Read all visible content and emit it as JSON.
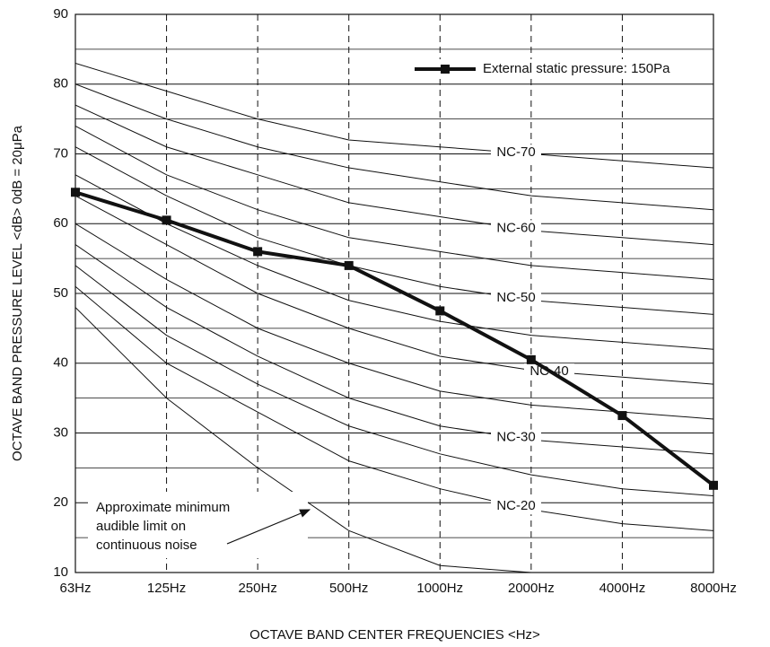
{
  "chart_data": {
    "type": "line",
    "y_axis_label": "OCTAVE BAND PRESSURE LEVEL <dB> 0dB = 20μPa",
    "x_axis_label": "OCTAVE BAND CENTER FREQUENCIES <Hz>",
    "categories": [
      "63Hz",
      "125Hz",
      "250Hz",
      "500Hz",
      "1000Hz",
      "2000Hz",
      "4000Hz",
      "8000Hz"
    ],
    "ylim": [
      10,
      90
    ],
    "yticks": [
      10,
      20,
      30,
      40,
      50,
      60,
      70,
      80,
      90
    ],
    "minor_yticks": [
      15,
      25,
      35,
      45,
      55,
      65,
      75,
      85
    ],
    "grid": true,
    "legend": "upper right",
    "series": [
      {
        "name": "External static pressure: 150Pa",
        "color": "#111111",
        "values": [
          64.5,
          60.5,
          56,
          54,
          47.5,
          40.5,
          32.5,
          22.5
        ]
      }
    ],
    "nc_curves": [
      {
        "label": "NC-70",
        "values": [
          83,
          79,
          75,
          72,
          71,
          70,
          69,
          68
        ]
      },
      {
        "values": [
          80,
          75,
          71,
          68,
          66,
          64,
          63,
          62
        ]
      },
      {
        "label": "NC-60",
        "values": [
          77,
          71,
          67,
          63,
          61,
          59,
          58,
          57
        ]
      },
      {
        "values": [
          74,
          67,
          62,
          58,
          56,
          54,
          53,
          52
        ]
      },
      {
        "label": "NC-50",
        "values": [
          71,
          64,
          58,
          54,
          51,
          49,
          48,
          47
        ]
      },
      {
        "values": [
          67,
          60,
          54,
          49,
          46,
          44,
          43,
          42
        ]
      },
      {
        "label": "NC-40",
        "values": [
          64,
          57,
          50,
          45,
          41,
          39,
          38,
          37
        ]
      },
      {
        "values": [
          60,
          52,
          45,
          40,
          36,
          34,
          33,
          32
        ]
      },
      {
        "label": "NC-30",
        "values": [
          57,
          48,
          41,
          35,
          31,
          29,
          28,
          27
        ]
      },
      {
        "values": [
          54,
          44,
          37,
          31,
          27,
          24,
          22,
          21
        ]
      },
      {
        "label": "NC-20",
        "values": [
          51,
          40,
          33,
          26,
          22,
          19,
          17,
          16
        ]
      }
    ],
    "audible_limit": {
      "values": [
        48,
        35,
        25,
        16,
        11,
        10,
        null,
        null
      ]
    },
    "annotation": [
      "Approximate minimum",
      "audible limit on",
      "continuous noise"
    ]
  }
}
